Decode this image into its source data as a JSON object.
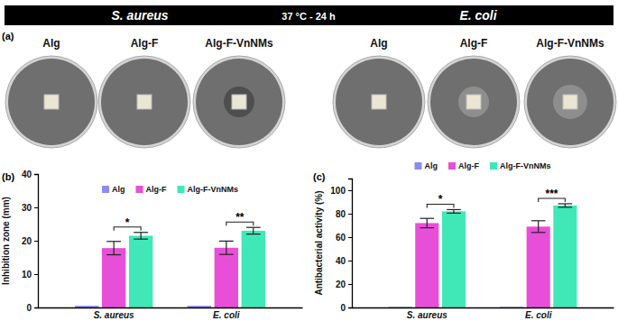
{
  "panel_a": {
    "label": "(a)",
    "banners": [
      "S. aureus",
      "37 °C - 24 h",
      "E. coli"
    ],
    "samples": [
      "Alg",
      "Alg-F",
      "Alg-F-VnNMs"
    ]
  },
  "chart_data": [
    {
      "type": "bar",
      "y_label": "Inhibition zone (mm)",
      "categories": [
        "S. aureus",
        "E. coli"
      ],
      "series": [
        {
          "name": "Alg",
          "color": "#8c8cf0",
          "values": [
            0.5,
            0.5
          ]
        },
        {
          "name": "Alg-F",
          "color": "#e84fd8",
          "values": [
            17.8,
            17.9
          ],
          "errors": [
            2.0,
            2.0
          ]
        },
        {
          "name": "Alg-F-VnNMs",
          "color": "#40e8b8",
          "values": [
            21.5,
            23.0
          ],
          "errors": [
            1.0,
            1.0
          ]
        }
      ],
      "ylim": [
        0,
        40
      ],
      "yticks": [
        0,
        10,
        20,
        30,
        40
      ],
      "legend": "top",
      "annotations": [
        {
          "text": "(b)"
        },
        {
          "text": "*",
          "category": 0,
          "between": [
            1,
            2
          ]
        },
        {
          "text": "**",
          "category": 1,
          "between": [
            1,
            2
          ]
        }
      ]
    },
    {
      "type": "bar",
      "y_label": "Antibacterial activity (%)",
      "categories": [
        "S. aureus",
        "E. coli"
      ],
      "series": [
        {
          "name": "Alg",
          "color": "#8c8cf0",
          "values": [
            0.5,
            0.5
          ]
        },
        {
          "name": "Alg-F",
          "color": "#e84fd8",
          "values": [
            72,
            69
          ],
          "errors": [
            4,
            5
          ]
        },
        {
          "name": "Alg-F-VnNMs",
          "color": "#40e8b8",
          "values": [
            82,
            87
          ],
          "errors": [
            1.5,
            1.5
          ]
        }
      ],
      "ylim": [
        0,
        110
      ],
      "yticks": [
        0,
        20,
        40,
        60,
        80,
        100
      ],
      "legend": "top",
      "annotations": [
        {
          "text": "(c)"
        },
        {
          "text": "*",
          "category": 0,
          "between": [
            1,
            2
          ]
        },
        {
          "text": "***",
          "category": 1,
          "between": [
            1,
            2
          ]
        }
      ]
    }
  ]
}
